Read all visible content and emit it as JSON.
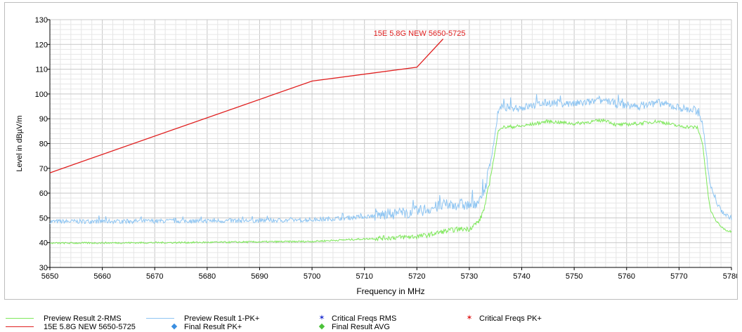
{
  "chart_data": {
    "type": "line",
    "title": "",
    "xlabel": "Frequency in MHz",
    "ylabel": "Level in dBµV/m",
    "xlim": [
      5650,
      5780
    ],
    "ylim": [
      30,
      130
    ],
    "x_ticks": [
      5650,
      5660,
      5670,
      5680,
      5690,
      5700,
      5710,
      5720,
      5730,
      5740,
      5750,
      5760,
      5770,
      5780
    ],
    "y_ticks": [
      30,
      40,
      50,
      60,
      70,
      80,
      90,
      100,
      110,
      120,
      130
    ],
    "grid": true,
    "series": [
      {
        "name": "15E 5.8G NEW 5650-5725",
        "color": "#e02020",
        "x": [
          5650,
          5700,
          5720,
          5725
        ],
        "y": [
          68.2,
          105.2,
          110.8,
          122.2
        ]
      },
      {
        "name": "Preview Result 1-PK+",
        "color": "#8ec5f2",
        "x": [
          5650,
          5660,
          5670,
          5680,
          5690,
          5700,
          5705,
          5710,
          5715,
          5720,
          5722,
          5725,
          5728,
          5730,
          5732,
          5733,
          5734,
          5735,
          5735.5,
          5736,
          5740,
          5745,
          5750,
          5754,
          5756,
          5758,
          5762,
          5766,
          5770,
          5773.5,
          5774.5,
          5775,
          5775.5,
          5776,
          5777,
          5778,
          5779,
          5780
        ],
        "y": [
          48.5,
          48.6,
          48.7,
          48.8,
          48.9,
          49.2,
          49.8,
          50.5,
          51.5,
          52.5,
          53.5,
          55,
          55.5,
          55,
          57,
          62,
          72,
          85,
          93,
          94.5,
          94.5,
          96.5,
          96,
          97,
          97.5,
          96,
          95,
          96.5,
          94.5,
          93,
          88,
          80,
          70,
          63,
          57,
          53,
          51,
          50
        ]
      },
      {
        "name": "Preview Result 2-RMS",
        "color": "#7ee85a",
        "x": [
          5650,
          5660,
          5670,
          5680,
          5690,
          5700,
          5705,
          5710,
          5715,
          5720,
          5722,
          5725,
          5728,
          5730,
          5732,
          5733,
          5734,
          5735,
          5735.5,
          5736,
          5740,
          5745,
          5750,
          5754,
          5756,
          5758,
          5762,
          5766,
          5770,
          5773.5,
          5774.5,
          5775,
          5775.5,
          5776,
          5777,
          5778,
          5779,
          5780
        ],
        "y": [
          39.8,
          39.9,
          40,
          40.1,
          40.3,
          40.5,
          41,
          41.5,
          42,
          42.5,
          43,
          44.5,
          45.5,
          45.5,
          49,
          55,
          66,
          78,
          85,
          86.5,
          87,
          89,
          88,
          89,
          89.5,
          87.5,
          88,
          89,
          87,
          86.5,
          80,
          70,
          60,
          53,
          49,
          46.5,
          45,
          44.5
        ]
      }
    ],
    "annotations": [
      {
        "text": "15E 5.8G NEW 5650-5725",
        "x": 5720.5,
        "y": 123.5,
        "color": "#e02020"
      }
    ],
    "legend": {
      "position": "bottom",
      "items": [
        {
          "label": "Preview Result 2-RMS",
          "marker": "line",
          "color": "#7ee85a"
        },
        {
          "label": "Preview Result 1-PK+",
          "marker": "line",
          "color": "#8ec5f2"
        },
        {
          "label": "Critical  Freqs RMS",
          "marker": "star",
          "color": "#1f2fd0"
        },
        {
          "label": "Critical  Freqs PK+",
          "marker": "star",
          "color": "#e02020"
        },
        {
          "label": "15E 5.8G NEW 5650-5725",
          "marker": "line",
          "color": "#e02020"
        },
        {
          "label": "Final  Result PK+",
          "marker": "diamond",
          "color": "#3a8ee0"
        },
        {
          "label": "Final  Result AVG",
          "marker": "diamond",
          "color": "#4cc23a"
        }
      ]
    }
  }
}
